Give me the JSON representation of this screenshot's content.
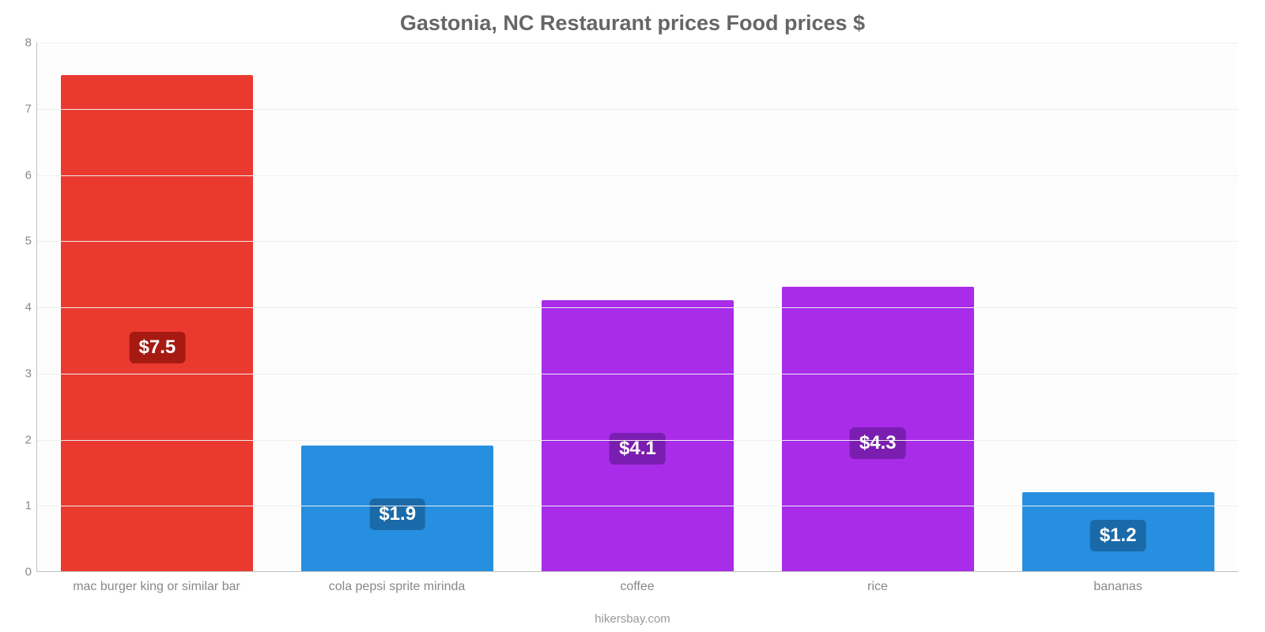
{
  "chart": {
    "type": "bar",
    "title": "Gastonia, NC Restaurant prices Food prices $",
    "title_fontsize": 27,
    "title_color": "#666666",
    "footer": "hikersbay.com",
    "footer_fontsize": 15,
    "footer_color": "#999999",
    "background_color": "#ffffff",
    "plot_background": "#fdfdfd",
    "grid_color": "#eeeeee",
    "axis_color": "#c0c0c0",
    "ylim": [
      0,
      8
    ],
    "ytick_step": 1,
    "tick_label_color": "#888888",
    "tick_label_fontsize": 15,
    "x_label_fontsize": 16,
    "x_label_color": "#888888",
    "bar_width_pct": 80,
    "value_label_fontsize": 24,
    "categories": [
      "mac burger king or similar bar",
      "cola pepsi sprite mirinda",
      "coffee",
      "rice",
      "bananas"
    ],
    "values": [
      7.5,
      1.9,
      4.1,
      4.3,
      1.2
    ],
    "value_labels": [
      "$7.5",
      "$1.9",
      "$4.1",
      "$4.3",
      "$1.2"
    ],
    "bar_colors": [
      "#ea3a2f",
      "#278fe0",
      "#a82ce8",
      "#a82ce8",
      "#278fe0"
    ],
    "badge_colors": [
      "#a71a12",
      "#1a6aa9",
      "#7a1db0",
      "#7a1db0",
      "#1a6aa9"
    ],
    "badge_vertical_offset_pct": 55
  }
}
